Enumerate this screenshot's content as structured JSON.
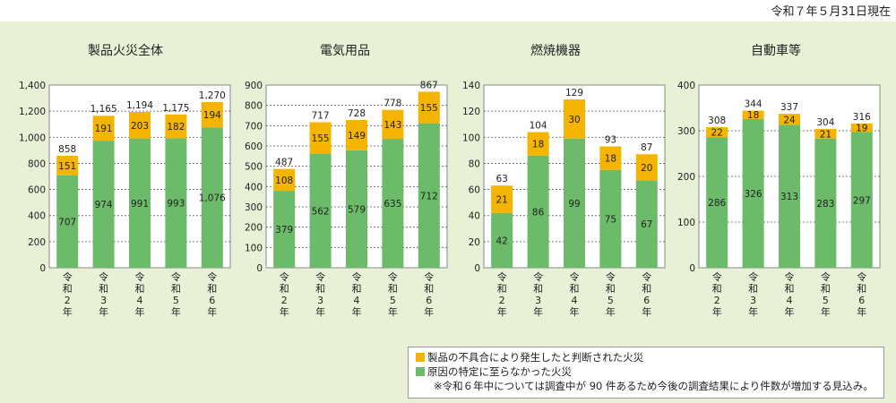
{
  "date_label": "令和７年５月31日現在",
  "colors": {
    "plot_bg": "#ffffff",
    "cause_identified": "#f5b400",
    "cause_unidentified": "#6cbb6a",
    "grid": "#555555"
  },
  "legend": {
    "cause_identified": "製品の不具合により発生したと判断された火災",
    "cause_unidentified": "原因の特定に至らなかった火災",
    "note": "※令和６年中については調査中が 90 件あるため今後の調査結果により件数が増加する見込み。"
  },
  "chart_data": [
    {
      "type": "bar",
      "stacked": true,
      "title": "製品火災全体",
      "categories": [
        "令和2年",
        "令和3年",
        "令和4年",
        "令和5年",
        "令和6年"
      ],
      "series": [
        {
          "name": "原因の特定に至らなかった火災",
          "values": [
            707,
            974,
            991,
            993,
            1076
          ]
        },
        {
          "name": "製品の不具合により発生したと判断された火災",
          "values": [
            151,
            191,
            203,
            182,
            194
          ]
        }
      ],
      "totals": [
        858,
        1165,
        1194,
        1175,
        1270
      ],
      "ylim": [
        0,
        1400
      ],
      "yticks": [
        0,
        200,
        400,
        600,
        800,
        1000,
        1200,
        1400
      ],
      "ytick_labels": [
        "0",
        "200",
        "400",
        "600",
        "800",
        "1,000",
        "1,200",
        "1,400"
      ],
      "grid": true
    },
    {
      "type": "bar",
      "stacked": true,
      "title": "電気用品",
      "categories": [
        "令和2年",
        "令和3年",
        "令和4年",
        "令和5年",
        "令和6年"
      ],
      "series": [
        {
          "name": "原因の特定に至らなかった火災",
          "values": [
            379,
            562,
            579,
            635,
            712
          ]
        },
        {
          "name": "製品の不具合により発生したと判断された火災",
          "values": [
            108,
            155,
            149,
            143,
            155
          ]
        }
      ],
      "totals": [
        487,
        717,
        728,
        778,
        867
      ],
      "ylim": [
        0,
        900
      ],
      "yticks": [
        0,
        100,
        200,
        300,
        400,
        500,
        600,
        700,
        800,
        900
      ],
      "ytick_labels": [
        "0",
        "100",
        "200",
        "300",
        "400",
        "500",
        "600",
        "700",
        "800",
        "900"
      ],
      "grid": true
    },
    {
      "type": "bar",
      "stacked": true,
      "title": "燃焼機器",
      "categories": [
        "令和2年",
        "令和3年",
        "令和4年",
        "令和5年",
        "令和6年"
      ],
      "series": [
        {
          "name": "原因の特定に至らなかった火災",
          "values": [
            42,
            86,
            99,
            75,
            67
          ]
        },
        {
          "name": "製品の不具合により発生したと判断された火災",
          "values": [
            21,
            18,
            30,
            18,
            20
          ]
        }
      ],
      "totals": [
        63,
        104,
        129,
        93,
        87
      ],
      "ylim": [
        0,
        140
      ],
      "yticks": [
        0,
        20,
        40,
        60,
        80,
        100,
        120,
        140
      ],
      "ytick_labels": [
        "0",
        "20",
        "40",
        "60",
        "80",
        "100",
        "120",
        "140"
      ],
      "grid": true
    },
    {
      "type": "bar",
      "stacked": true,
      "title": "自動車等",
      "categories": [
        "令和2年",
        "令和3年",
        "令和4年",
        "令和5年",
        "令和6年"
      ],
      "series": [
        {
          "name": "原因の特定に至らなかった火災",
          "values": [
            286,
            326,
            313,
            283,
            297
          ]
        },
        {
          "name": "製品の不具合により発生したと判断された火災",
          "values": [
            22,
            18,
            24,
            21,
            19
          ]
        }
      ],
      "totals": [
        308,
        344,
        337,
        304,
        316
      ],
      "ylim": [
        0,
        400
      ],
      "yticks": [
        0,
        100,
        200,
        300,
        400
      ],
      "ytick_labels": [
        "0",
        "100",
        "200",
        "300",
        "400"
      ],
      "grid": true
    }
  ]
}
